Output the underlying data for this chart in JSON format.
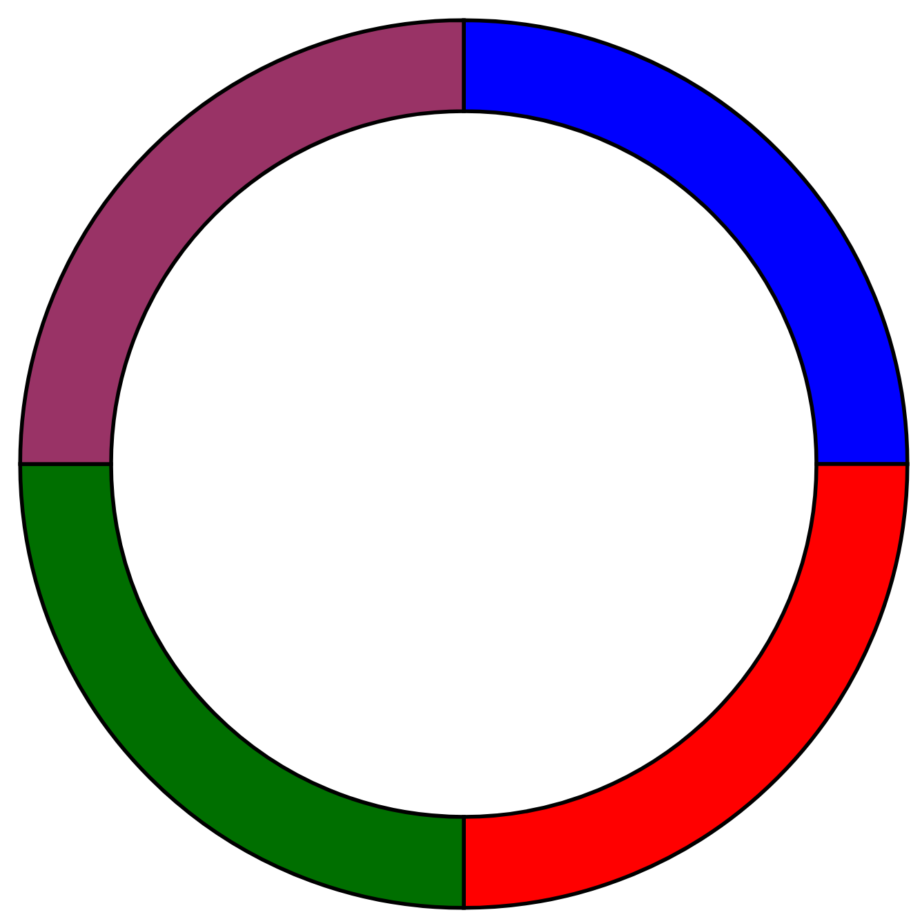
{
  "chart_data": {
    "type": "donut",
    "categories": [
      null,
      null,
      null,
      null
    ],
    "values": [
      25,
      25,
      25,
      25
    ],
    "colors": [
      "#0000ff",
      "#ff0000",
      "#006f00",
      "#993366"
    ]
  }
}
